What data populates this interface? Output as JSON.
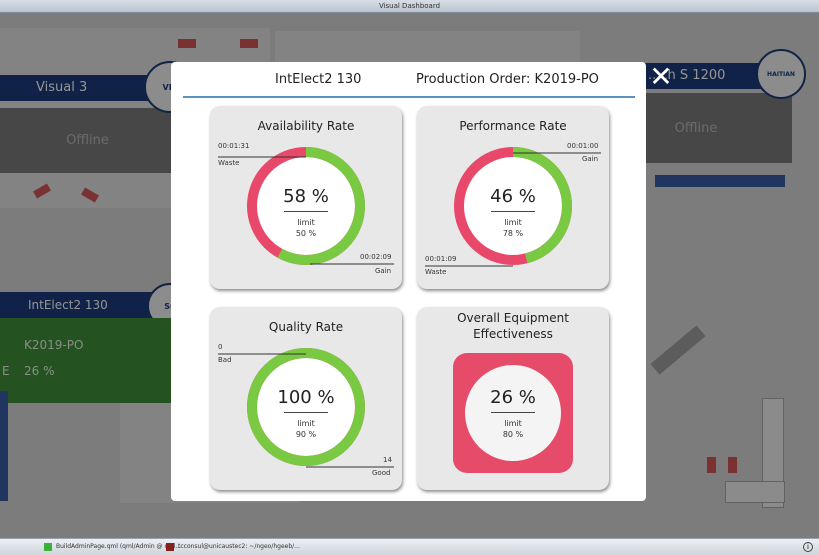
{
  "window": {
    "title": "Visual Dashboard"
  },
  "background": {
    "machines": [
      {
        "name": "Visual 3",
        "status": "Offline"
      },
      {
        "name": "...ch S 1200",
        "status": "Offline"
      },
      {
        "name": "IntElect2 130",
        "order": "K2019-PO",
        "oee_label": "E",
        "oee": "26 %"
      }
    ],
    "logos": [
      "VIS",
      "HAITIAN",
      "Su"
    ]
  },
  "modal": {
    "machine": "IntElect2 130",
    "production_order": "Production Order: K2019-PO",
    "close": "✕",
    "cards": {
      "availability": {
        "title": "Availability Rate",
        "value": "58 %",
        "limit_label": "limit",
        "limit": "50 %",
        "ann_top": "00:01:31",
        "ann_top_label": "Waste",
        "ann_bottom": "00:02:09",
        "ann_bottom_label": "Gain",
        "fraction": 0.58
      },
      "performance": {
        "title": "Performance Rate",
        "value": "46 %",
        "limit_label": "limit",
        "limit": "78 %",
        "ann_top": "00:01:00",
        "ann_top_label": "Gain",
        "ann_bottom": "00:01:09",
        "ann_bottom_label": "Waste",
        "fraction": 0.46
      },
      "quality": {
        "title": "Quality Rate",
        "value": "100 %",
        "limit_label": "limit",
        "limit": "90 %",
        "ann_top": "0",
        "ann_top_label": "Bad",
        "ann_bottom": "14",
        "ann_bottom_label": "Good",
        "fraction": 1.0
      },
      "oee": {
        "title_line1": "Overall Equipment",
        "title_line2": "Effectiveness",
        "value": "26 %",
        "limit_label": "limit",
        "limit": "80 %"
      }
    }
  },
  "taskbar": {
    "tasks": [
      "BuildAdminPage.qml (qml/Admin @ cod...",
      "tcconsul@unicaustec2: ~/ngeo/hgeeb/..."
    ],
    "tray_icon": "i"
  },
  "colors": {
    "good": "#7ac943",
    "bad": "#e8486a",
    "brand": "#1c3b7a",
    "oee_box": "#e64b6a"
  }
}
